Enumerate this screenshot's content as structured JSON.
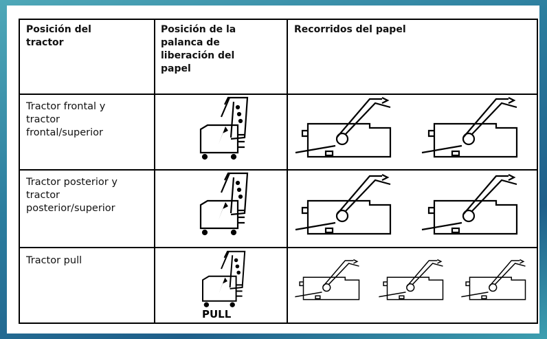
{
  "table": {
    "header": [
      "Posición del tractor",
      "Posición de la palanca de liberación del papel",
      "Recorridos del papel"
    ],
    "rows": [
      {
        "tractor": "Tractor frontal y tractor frontal/superior"
      },
      {
        "tractor": "Tractor posterior y tractor posterior/superior"
      },
      {
        "tractor": "Tractor pull",
        "lever_label": "PULL"
      }
    ]
  }
}
